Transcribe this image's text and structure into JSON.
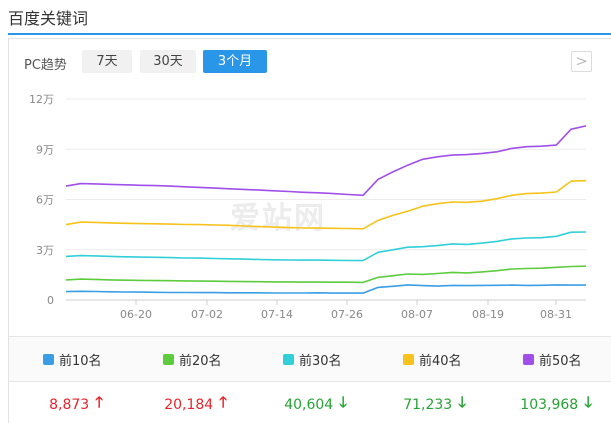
{
  "page_title": "百度关键词",
  "pc_label": "PC趋势",
  "range_tabs": [
    {
      "label": "7天",
      "active": false
    },
    {
      "label": "30天",
      "active": false
    },
    {
      "label": "3个月",
      "active": true
    }
  ],
  "next_label": ">",
  "watermark": "爱站网",
  "chart_data": {
    "type": "line",
    "x_labels": [
      "06-20",
      "07-02",
      "07-14",
      "07-26",
      "08-07",
      "08-19",
      "08-31"
    ],
    "y_ticks": [
      "0",
      "3万",
      "6万",
      "9万",
      "12万"
    ],
    "ylim": [
      0,
      120000
    ],
    "grid": true,
    "series": [
      {
        "name": "前10名",
        "color": "#3a9ee6",
        "values": [
          5000,
          5200,
          5100,
          4900,
          4800,
          4700,
          4600,
          4500,
          4500,
          4400,
          4400,
          4300,
          4300,
          4300,
          4200,
          4200,
          4200,
          4300,
          4100,
          4100,
          4100,
          7500,
          8200,
          9000,
          8600,
          8300,
          8700,
          8600,
          8700,
          8800,
          8900,
          8700,
          8800,
          9000,
          8900,
          8873
        ]
      },
      {
        "name": "前20名",
        "color": "#5ccc3e",
        "values": [
          12000,
          12500,
          12300,
          12000,
          11800,
          11700,
          11600,
          11500,
          11400,
          11300,
          11200,
          11100,
          11000,
          10900,
          10800,
          10800,
          10700,
          10700,
          10600,
          10600,
          10500,
          13500,
          14500,
          15500,
          15300,
          15800,
          16500,
          16200,
          16800,
          17500,
          18500,
          18800,
          19000,
          19500,
          20000,
          20184
        ]
      },
      {
        "name": "前30名",
        "color": "#31cfd8",
        "values": [
          26000,
          26500,
          26300,
          26000,
          25800,
          25600,
          25500,
          25300,
          25100,
          25000,
          24800,
          24600,
          24400,
          24200,
          24000,
          23900,
          23800,
          23800,
          23700,
          23600,
          23500,
          28500,
          30000,
          31500,
          31800,
          32500,
          33500,
          33200,
          34000,
          35000,
          36500,
          37000,
          37200,
          38000,
          40500,
          40604
        ]
      },
      {
        "name": "前40名",
        "color": "#f6c21b",
        "values": [
          45000,
          46500,
          46300,
          46000,
          45800,
          45600,
          45500,
          45300,
          45100,
          45000,
          44800,
          44600,
          44200,
          43800,
          43500,
          43200,
          43000,
          42900,
          42800,
          42700,
          42500,
          47500,
          50500,
          53000,
          56000,
          57500,
          58500,
          58300,
          59000,
          60500,
          62500,
          63500,
          63800,
          64500,
          71000,
          71233
        ]
      },
      {
        "name": "前50名",
        "color": "#a04fe8",
        "values": [
          68000,
          69500,
          69300,
          69000,
          68800,
          68500,
          68300,
          68000,
          67600,
          67200,
          66800,
          66400,
          66000,
          65600,
          65200,
          64800,
          64300,
          64000,
          63500,
          63000,
          62500,
          72000,
          76500,
          80500,
          84000,
          85500,
          86500,
          86800,
          87500,
          88500,
          90500,
          91500,
          91800,
          92500,
          102000,
          103968
        ]
      }
    ]
  },
  "legend": [
    {
      "label": "前10名",
      "color": "#3a9ee6"
    },
    {
      "label": "前20名",
      "color": "#5ccc3e"
    },
    {
      "label": "前30名",
      "color": "#31cfd8"
    },
    {
      "label": "前40名",
      "color": "#f6c21b"
    },
    {
      "label": "前50名",
      "color": "#a04fe8"
    }
  ],
  "totals": [
    {
      "value": "8,873",
      "trend": "up",
      "arrow": "🡑",
      "color": "#e8242b"
    },
    {
      "value": "20,184",
      "trend": "up",
      "arrow": "🡑",
      "color": "#e8242b"
    },
    {
      "value": "40,604",
      "trend": "down",
      "arrow": "🡓",
      "color": "#27a334"
    },
    {
      "value": "71,233",
      "trend": "down",
      "arrow": "🡓",
      "color": "#27a334"
    },
    {
      "value": "103,968",
      "trend": "down",
      "arrow": "🡓",
      "color": "#27a334"
    }
  ]
}
